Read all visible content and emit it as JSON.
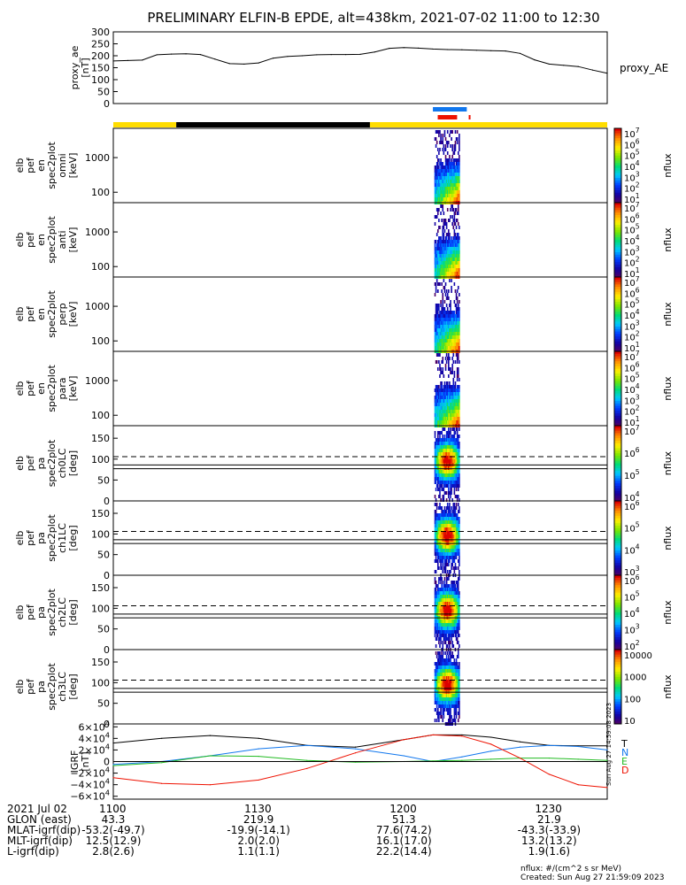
{
  "title": "PRELIMINARY ELFIN-B EPDE, alt=438km, 2021-07-02 11:00 to 12:30",
  "colors": {
    "black": "#000000",
    "yellow": "#ffdd00",
    "blue": "#1177ee",
    "red": "#ee1100",
    "green": "#22bb22",
    "grey": "#dddddd"
  },
  "icon_names": [
    "rainbow-colorbar-icon"
  ],
  "status_bars": [
    {
      "color": "yellow",
      "t0": 0,
      "t1": 13
    },
    {
      "color": "black",
      "t0": 13,
      "t1": 53
    },
    {
      "color": "yellow",
      "t0": 53,
      "t1": 102
    }
  ],
  "marker_bars": [
    {
      "color": "blue",
      "t0": 66,
      "t1": 73
    },
    {
      "color": "red",
      "t0": 67,
      "t1": 71
    },
    {
      "color": "red",
      "t0": 73.4,
      "t1": 73.7
    }
  ],
  "footer": {
    "tick_labels": [
      "1100",
      "1130",
      "1200",
      "1230"
    ],
    "rows": [
      {
        "label": "2021 Jul 02",
        "values": [
          "",
          "",
          "",
          ""
        ]
      },
      {
        "label": "GLON (east)",
        "values": [
          "43.3",
          "219.9",
          "51.3",
          "21.9"
        ]
      },
      {
        "label": "MLAT-igrf(dip)",
        "values": [
          "-53.2(-49.7)",
          "-19.9(-14.1)",
          "77.6(74.2)",
          "-43.3(-33.9)"
        ]
      },
      {
        "label": "MLT-igrf(dip)",
        "values": [
          "12.5(12.9)",
          "2.0(2.0)",
          "16.1(17.0)",
          "13.2(13.2)"
        ]
      },
      {
        "label": "L-igrf(dip)",
        "values": [
          "2.8(2.6)",
          "1.1(1.1)",
          "22.2(14.4)",
          "1.9(1.6)"
        ]
      }
    ],
    "note_line1": "nflux: #/(cm^2 s sr MeV)",
    "note_line2": "Created: Sun Aug 27 21:59:09 2023",
    "side_stamp": "Sun Aug 27 14:59:08 2023"
  },
  "chart_data": [
    {
      "type": "line",
      "ylabel": [
        "proxy_ae",
        "[nT]"
      ],
      "yticks": [
        "300",
        "250",
        "200",
        "150",
        "100",
        "50",
        "0"
      ],
      "ylim": [
        0,
        300
      ],
      "series": [
        {
          "name": "proxy_AE",
          "color": "black",
          "x": [
            0,
            3,
            6,
            9,
            12,
            15,
            18,
            21,
            24,
            27,
            30,
            33,
            36,
            39,
            42,
            45,
            48,
            51,
            54,
            57,
            60,
            63,
            66,
            69,
            72,
            75,
            78,
            81,
            84,
            87,
            90,
            93,
            96,
            99,
            102
          ],
          "values": [
            178,
            180,
            182,
            204,
            207,
            208,
            205,
            186,
            167,
            165,
            170,
            190,
            197,
            200,
            204,
            205,
            205,
            206,
            216,
            231,
            234,
            232,
            228,
            226,
            225,
            223,
            221,
            220,
            210,
            183,
            165,
            160,
            155,
            140,
            127
          ]
        }
      ]
    },
    {
      "type": "heatmap",
      "ylabel": [
        "elb",
        "pef",
        "en",
        "spec2plot",
        "omni",
        "[keV]"
      ],
      "yticks": [
        "1000",
        "100"
      ],
      "ylim": [
        50,
        7000
      ],
      "log": true,
      "colorbar": {
        "label": "nflux",
        "ticks": [
          "10^7",
          "10^6",
          "10^5",
          "10^4",
          "10^3",
          "10^2",
          "10^1"
        ]
      }
    },
    {
      "type": "heatmap",
      "ylabel": [
        "elb",
        "pef",
        "en",
        "spec2plot",
        "anti",
        "[keV]"
      ],
      "yticks": [
        "1000",
        "100"
      ],
      "ylim": [
        50,
        7000
      ],
      "log": true,
      "colorbar": {
        "label": "nflux",
        "ticks": [
          "10^7",
          "10^6",
          "10^5",
          "10^4",
          "10^3",
          "10^2",
          "10^1"
        ]
      }
    },
    {
      "type": "heatmap",
      "ylabel": [
        "elb",
        "pef",
        "en",
        "spec2plot",
        "perp",
        "[keV]"
      ],
      "yticks": [
        "1000",
        "100"
      ],
      "ylim": [
        50,
        7000
      ],
      "log": true,
      "colorbar": {
        "label": "nflux",
        "ticks": [
          "10^7",
          "10^6",
          "10^5",
          "10^4",
          "10^3",
          "10^2",
          "10^1"
        ]
      }
    },
    {
      "type": "heatmap",
      "ylabel": [
        "elb",
        "pef",
        "en",
        "spec2plot",
        "para",
        "[keV]"
      ],
      "yticks": [
        "1000",
        "100"
      ],
      "ylim": [
        50,
        7000
      ],
      "log": true,
      "colorbar": {
        "label": "nflux",
        "ticks": [
          "10^7",
          "10^6",
          "10^5",
          "10^4",
          "10^3",
          "10^2",
          "10^1"
        ]
      }
    },
    {
      "type": "heatmap",
      "ylabel": [
        "elb",
        "pef",
        "pa",
        "spec2plot",
        "ch0LC",
        "[deg]"
      ],
      "yticks": [
        "150",
        "100",
        "50",
        "0"
      ],
      "ylim": [
        0,
        180
      ],
      "colorbar": {
        "label": "nflux",
        "ticks": [
          "10^7",
          "10^6",
          "10^5",
          "10^4"
        ]
      },
      "lc_solid": [
        77,
        86
      ],
      "lc_dashed": [
        106
      ]
    },
    {
      "type": "heatmap",
      "ylabel": [
        "elb",
        "pef",
        "pa",
        "spec2plot",
        "ch1LC",
        "[deg]"
      ],
      "yticks": [
        "150",
        "100",
        "50",
        "0"
      ],
      "ylim": [
        0,
        180
      ],
      "colorbar": {
        "label": "nflux",
        "ticks": [
          "10^6",
          "10^5",
          "10^4",
          "10^3"
        ]
      },
      "lc_solid": [
        77,
        86
      ],
      "lc_dashed": [
        106
      ]
    },
    {
      "type": "heatmap",
      "ylabel": [
        "elb",
        "pef",
        "pa",
        "spec2plot",
        "ch2LC",
        "[deg]"
      ],
      "yticks": [
        "150",
        "100",
        "50",
        "0"
      ],
      "ylim": [
        0,
        180
      ],
      "colorbar": {
        "label": "nflux",
        "ticks": [
          "10^6",
          "10^5",
          "10^4",
          "10^3",
          "10^2"
        ]
      },
      "lc_solid": [
        77,
        86
      ],
      "lc_dashed": [
        106
      ]
    },
    {
      "type": "heatmap",
      "ylabel": [
        "elb",
        "pef",
        "pa",
        "spec2plot",
        "ch3LC",
        "[deg]"
      ],
      "yticks": [
        "150",
        "100",
        "50",
        "0"
      ],
      "ylim": [
        0,
        180
      ],
      "colorbar": {
        "label": "nflux",
        "ticks": [
          "10000",
          "1000",
          "100",
          "10"
        ]
      },
      "lc_solid": [
        77,
        86
      ],
      "lc_dashed": [
        106
      ]
    },
    {
      "type": "line",
      "ylabel": [
        "IGRF",
        "[nT]"
      ],
      "yticks": [
        "6×10^4",
        "4×10^4",
        "2×10^4",
        "0",
        "−2×10^4",
        "−4×10^4",
        "−6×10^4"
      ],
      "ylim": [
        -65000,
        65000
      ],
      "series": [
        {
          "name": "T",
          "color": "black",
          "x": [
            0,
            10,
            20,
            30,
            40,
            50,
            60,
            66,
            72,
            78,
            84,
            90,
            96,
            102
          ],
          "values": [
            32000,
            40000,
            45000,
            40000,
            28000,
            25000,
            38000,
            46000,
            46000,
            42000,
            34000,
            28000,
            27000,
            27000
          ]
        },
        {
          "name": "N",
          "color": "blue",
          "x": [
            0,
            10,
            20,
            30,
            40,
            50,
            60,
            66,
            72,
            78,
            84,
            90,
            96,
            102
          ],
          "values": [
            -5000,
            0,
            10000,
            22000,
            28000,
            22000,
            10000,
            0,
            8000,
            18000,
            25000,
            28000,
            26000,
            20000
          ]
        },
        {
          "name": "E",
          "color": "green",
          "x": [
            0,
            10,
            20,
            30,
            40,
            50,
            60,
            66,
            72,
            78,
            84,
            90,
            96,
            102
          ],
          "values": [
            -7000,
            -2000,
            10000,
            9000,
            2000,
            -1000,
            0,
            1000,
            2000,
            4000,
            6000,
            6000,
            4000,
            2000
          ]
        },
        {
          "name": "D",
          "color": "red",
          "x": [
            0,
            10,
            20,
            30,
            40,
            50,
            60,
            66,
            72,
            78,
            84,
            90,
            96,
            102
          ],
          "values": [
            -28000,
            -38000,
            -40000,
            -32000,
            -12000,
            15000,
            38000,
            46000,
            44000,
            30000,
            6000,
            -22000,
            -40000,
            -45000
          ]
        }
      ]
    }
  ]
}
